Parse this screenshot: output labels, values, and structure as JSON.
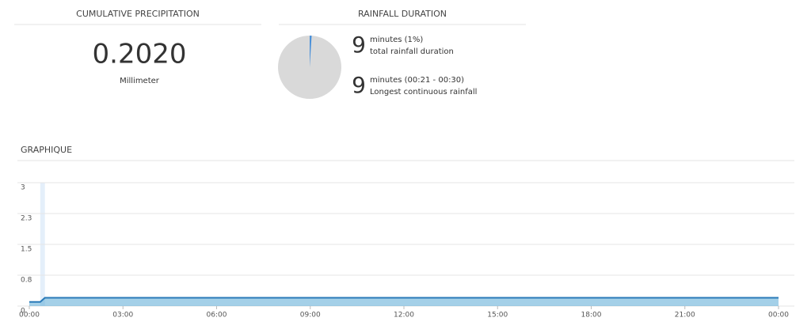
{
  "precipitation": {
    "title": "CUMULATIVE PRECIPITATION",
    "value": "0.2020",
    "unit": "Millimeter"
  },
  "duration": {
    "title": "RAINFALL DURATION",
    "pie_percent": 1,
    "stats": [
      {
        "number": 9,
        "label": "minutes (1%)",
        "caption": "total rainfall duration"
      },
      {
        "number": 9,
        "label": "minutes (00:21 - 00:30)",
        "caption": "Longest continuous rainfall"
      }
    ]
  },
  "chart_data": {
    "type": "area",
    "title": "GRAPHIQUE",
    "x": [
      0,
      21,
      30,
      1440
    ],
    "values": [
      0.1,
      0.1,
      0.202,
      0.202
    ],
    "color": "#5aaad6",
    "highlight": [
      21,
      30
    ],
    "xlim": [
      0,
      1440
    ],
    "xticks": [
      {
        "value": 0,
        "label": "00:00"
      },
      {
        "value": 180,
        "label": "03:00"
      },
      {
        "value": 360,
        "label": "06:00"
      },
      {
        "value": 540,
        "label": "09:00"
      },
      {
        "value": 720,
        "label": "12:00"
      },
      {
        "value": 900,
        "label": "15:00"
      },
      {
        "value": 1080,
        "label": "18:00"
      },
      {
        "value": 1260,
        "label": "21:00"
      },
      {
        "value": 1440,
        "label": "00:00"
      }
    ],
    "ylim": [
      0,
      3
    ],
    "yticks": [
      0,
      {
        "value": 0.75,
        "label": "0.8"
      },
      1.5,
      {
        "value": 2.25,
        "label": "2.3"
      },
      3
    ],
    "grid": true
  }
}
